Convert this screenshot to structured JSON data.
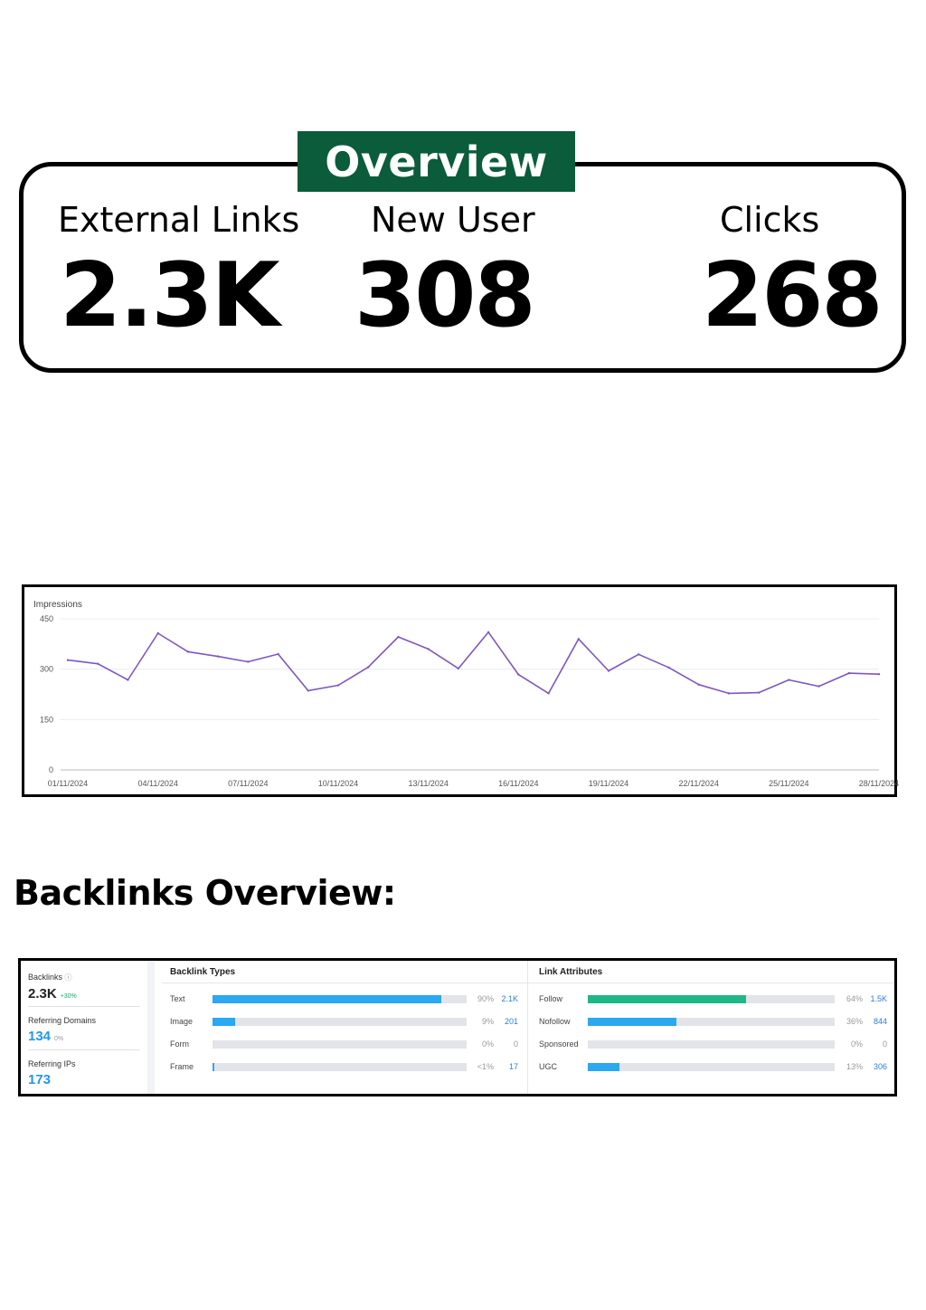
{
  "overview": {
    "tag": "Overview",
    "stats": [
      {
        "label": "External Links",
        "value": "2.3K"
      },
      {
        "label": "New User",
        "value": "308"
      },
      {
        "label": "Clicks",
        "value": "268"
      }
    ]
  },
  "chart_data": {
    "type": "line",
    "title": "Impressions",
    "ylim": [
      0,
      450
    ],
    "yticks": [
      "0",
      "150",
      "300",
      "450"
    ],
    "xtick_labels": [
      "01/11/2024",
      "04/11/2024",
      "07/11/2024",
      "10/11/2024",
      "13/11/2024",
      "16/11/2024",
      "19/11/2024",
      "22/11/2024",
      "25/11/2024",
      "28/11/2024"
    ],
    "x": [
      "01/11/2024",
      "02/11/2024",
      "03/11/2024",
      "04/11/2024",
      "05/11/2024",
      "06/11/2024",
      "07/11/2024",
      "08/11/2024",
      "09/11/2024",
      "10/11/2024",
      "11/11/2024",
      "12/11/2024",
      "13/11/2024",
      "14/11/2024",
      "15/11/2024",
      "16/11/2024",
      "17/11/2024",
      "18/11/2024",
      "19/11/2024",
      "20/11/2024",
      "21/11/2024",
      "22/11/2024",
      "23/11/2024",
      "24/11/2024",
      "25/11/2024",
      "26/11/2024",
      "27/11/2024",
      "28/11/2024"
    ],
    "series": [
      {
        "values": [
          327,
          316,
          268,
          407,
          352,
          338,
          322,
          345,
          236,
          252,
          306,
          396,
          360,
          302,
          410,
          284,
          228,
          390,
          295,
          344,
          305,
          254,
          228,
          230,
          268,
          249,
          288,
          285
        ],
        "color": "#7e57c2"
      }
    ],
    "grid": true
  },
  "backlinks": {
    "heading": "Backlinks Overview:",
    "summary": [
      {
        "label": "Backlinks",
        "value": "2.3K",
        "delta": "+30%",
        "value_color": "#222222",
        "delta_color": "#1aa36f",
        "label_suffix": "ⓘ"
      },
      {
        "label": "Referring Domains",
        "value": "134",
        "delta": "0%",
        "value_color": "#2196f3",
        "delta_color": "#999999",
        "label_suffix": ""
      },
      {
        "label": "Referring IPs",
        "value": "173",
        "delta": "",
        "value_color": "#2196f3",
        "delta_color": "#999999",
        "label_suffix": ""
      }
    ],
    "types_title": "Backlink Types",
    "types": [
      {
        "label": "Text",
        "fraction": 0.9,
        "pct": "90%",
        "count": "2.1K"
      },
      {
        "label": "Image",
        "fraction": 0.09,
        "pct": "9%",
        "count": "201"
      },
      {
        "label": "Form",
        "fraction": 0.0,
        "pct": "0%",
        "count": "0"
      },
      {
        "label": "Frame",
        "fraction": 0.007,
        "pct": "<1%",
        "count": "17"
      }
    ],
    "attributes_title": "Link Attributes",
    "attributes": [
      {
        "label": "Follow",
        "fraction": 0.64,
        "pct": "64%",
        "count": "1.5K",
        "color": "#1db886"
      },
      {
        "label": "Nofollow",
        "fraction": 0.36,
        "pct": "36%",
        "count": "844",
        "color": "#2aa8f2"
      },
      {
        "label": "Sponsored",
        "fraction": 0.0,
        "pct": "0%",
        "count": "0",
        "color": "#2aa8f2"
      },
      {
        "label": "UGC",
        "fraction": 0.13,
        "pct": "13%",
        "count": "306",
        "color": "#2aa8f2"
      }
    ],
    "bar_color": "#2aa8f2",
    "count_color": "#2a7fd8"
  }
}
